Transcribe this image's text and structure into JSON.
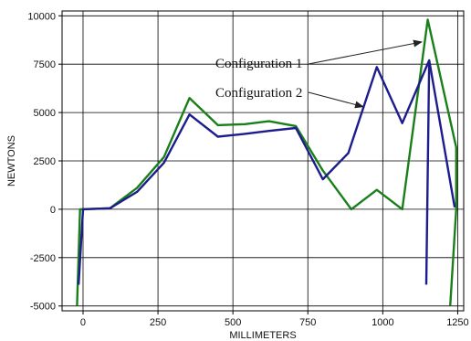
{
  "chart_data": {
    "type": "line",
    "xlabel": "MILLIMETERS",
    "ylabel": "NEWTONS",
    "xlim": [
      -70,
      1270
    ],
    "ylim": [
      -5250,
      10250
    ],
    "x_ticks": [
      0,
      250,
      500,
      750,
      1000,
      1250
    ],
    "y_ticks": [
      -5000,
      -2500,
      0,
      2500,
      5000,
      7500,
      10000
    ],
    "grid": true,
    "series": [
      {
        "name": "Configuration 1",
        "color": "#1a7f1a",
        "points": [
          [
            -20,
            -5000
          ],
          [
            -10,
            0
          ],
          [
            90,
            50
          ],
          [
            180,
            1100
          ],
          [
            270,
            2700
          ],
          [
            355,
            5750
          ],
          [
            450,
            4350
          ],
          [
            540,
            4400
          ],
          [
            620,
            4550
          ],
          [
            710,
            4300
          ],
          [
            800,
            2000
          ],
          [
            895,
            0
          ],
          [
            980,
            1000
          ],
          [
            1065,
            0
          ],
          [
            1150,
            9800
          ],
          [
            1245,
            3200
          ],
          [
            1245,
            0
          ],
          [
            1225,
            -5000
          ]
        ]
      },
      {
        "name": "Configuration 2",
        "color": "#1c1c8c",
        "points": [
          [
            -15,
            -3900
          ],
          [
            0,
            0
          ],
          [
            90,
            50
          ],
          [
            180,
            900
          ],
          [
            270,
            2400
          ],
          [
            355,
            4900
          ],
          [
            450,
            3750
          ],
          [
            540,
            3900
          ],
          [
            620,
            4050
          ],
          [
            710,
            4200
          ],
          [
            800,
            1550
          ],
          [
            885,
            2900
          ],
          [
            980,
            7350
          ],
          [
            1065,
            4450
          ],
          [
            1155,
            7700
          ],
          [
            1145,
            -3900
          ]
        ],
        "extra_segments": [
          [
            [
              1155,
              7700
            ],
            [
              1240,
              100
            ]
          ]
        ]
      }
    ],
    "annotations": [
      {
        "text": "Configuration 1",
        "target_series": "Configuration 1",
        "target_point": [
          1130,
          8650
        ]
      },
      {
        "text": "Configuration 2",
        "target_series": "Configuration 2",
        "target_point": [
          935,
          5300
        ]
      }
    ]
  }
}
